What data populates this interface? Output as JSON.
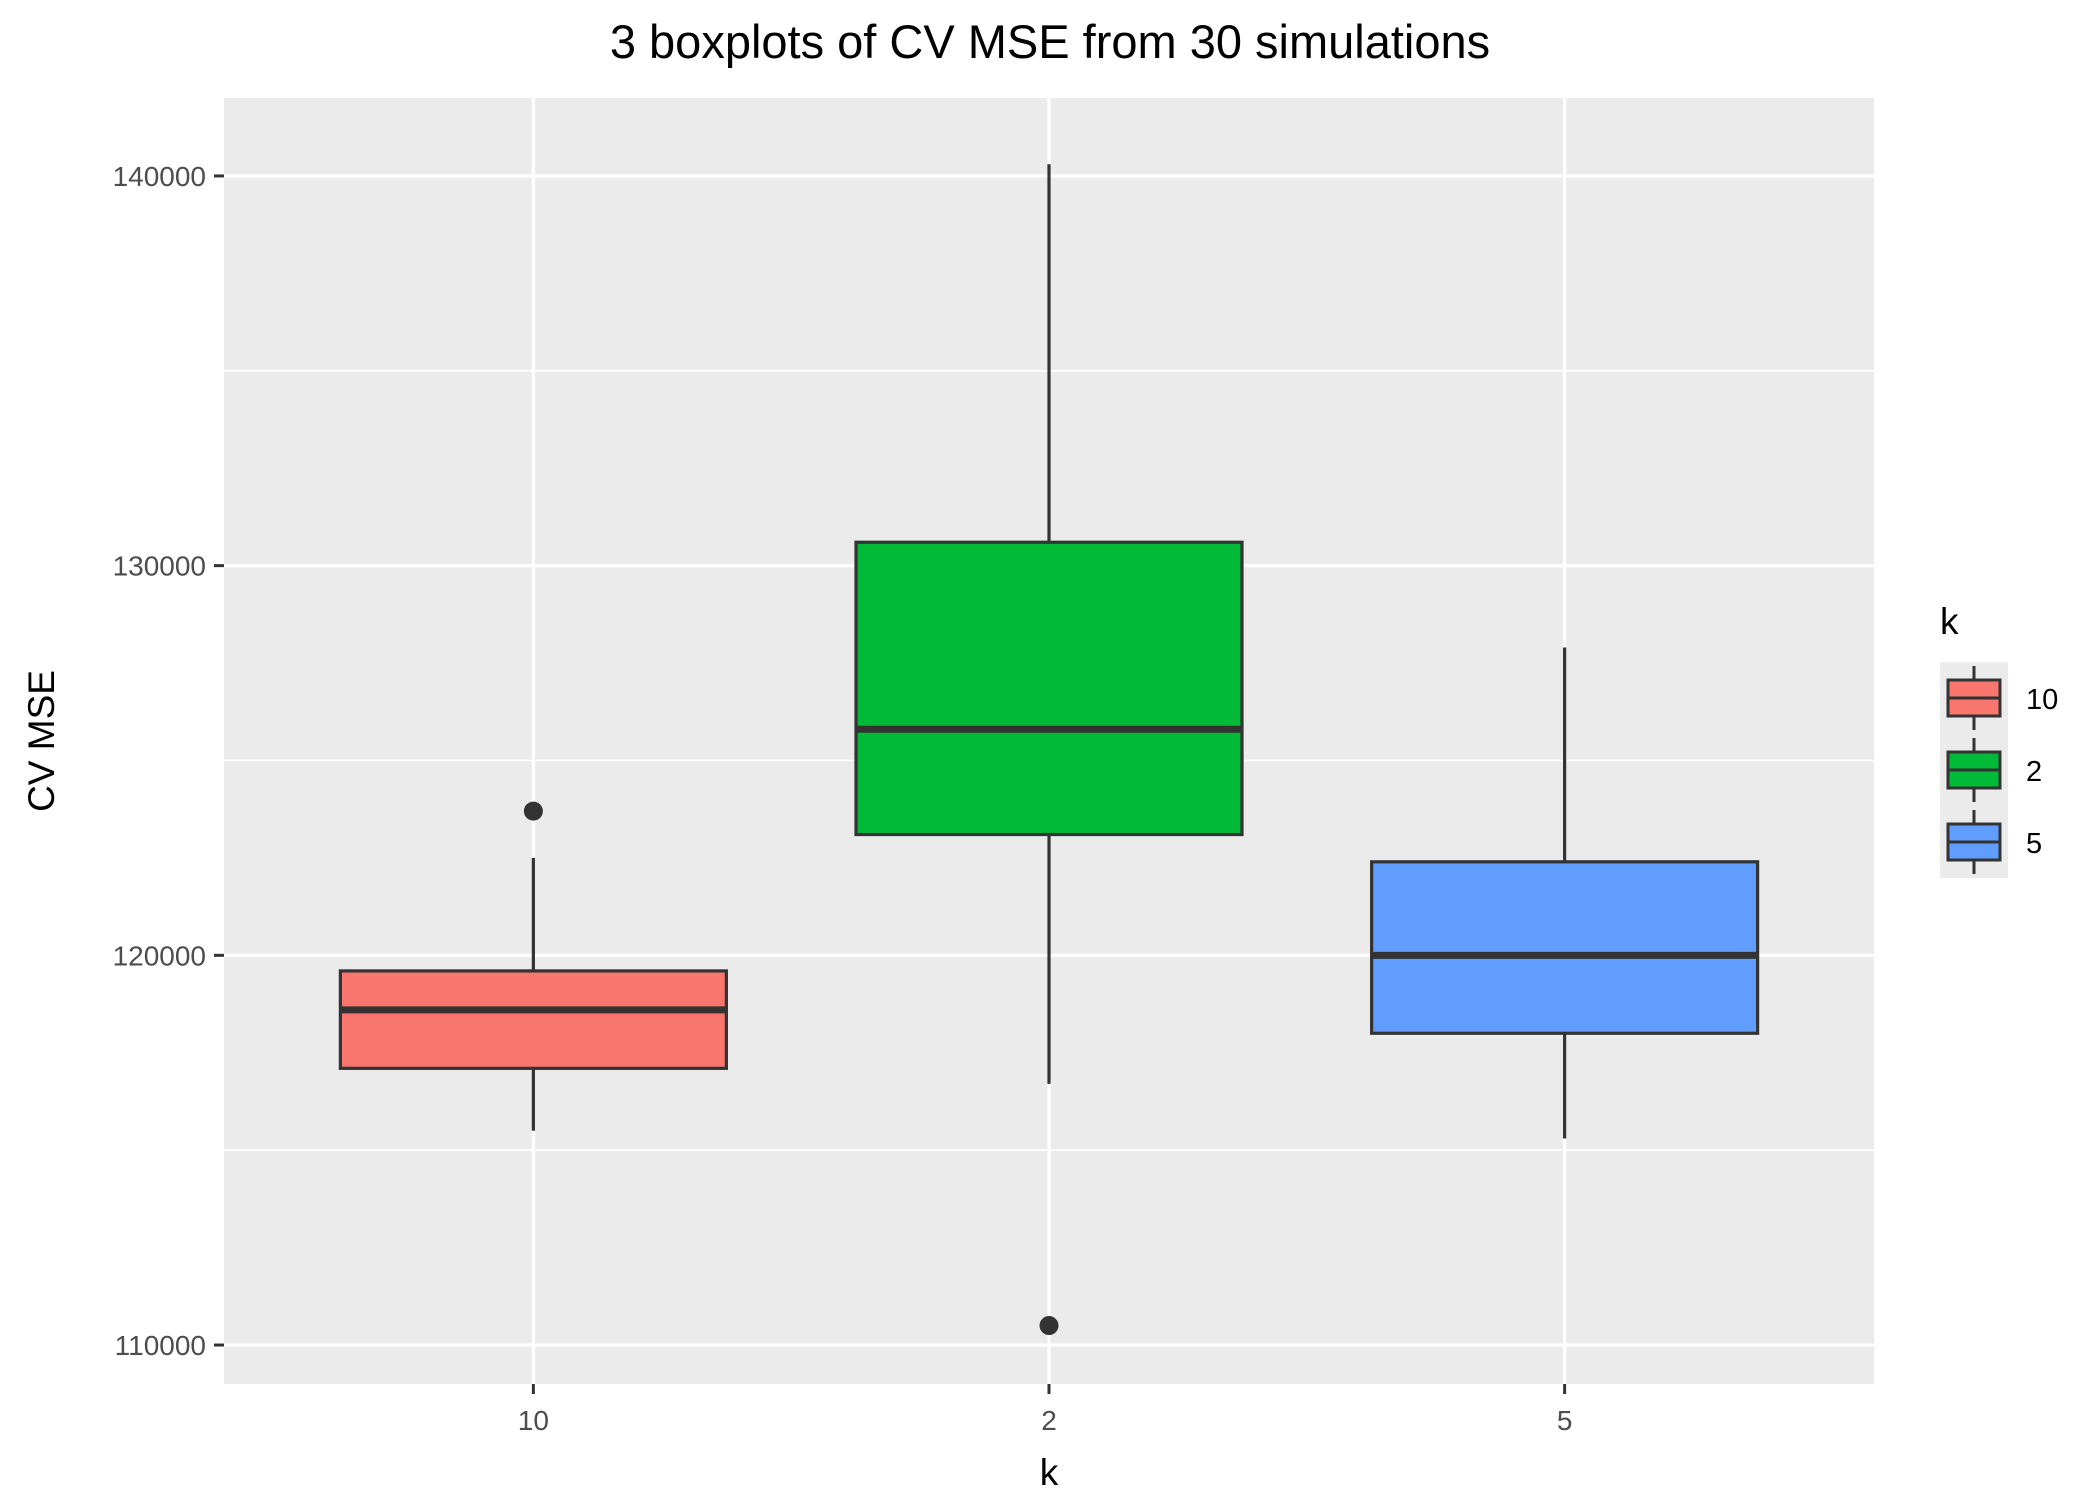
{
  "chart_data": {
    "type": "boxplot",
    "title": "3 boxplots of CV MSE from 30 simulations",
    "xlabel": "k",
    "ylabel": "CV MSE",
    "categories": [
      "10",
      "2",
      "5"
    ],
    "y_ticks": [
      110000,
      120000,
      130000,
      140000
    ],
    "ylim": [
      109000,
      142000
    ],
    "grid": true,
    "legend": {
      "title": "k",
      "position": "right",
      "entries": [
        "10",
        "2",
        "5"
      ]
    },
    "colors": {
      "10": "#F8766D",
      "2": "#00BA38",
      "5": "#619CFF",
      "panel_background": "#EBEBEB",
      "grid": "#FFFFFF",
      "outline": "#333333"
    },
    "series": [
      {
        "name": "10",
        "whisker_low": 115500,
        "q1": 117100,
        "median": 118600,
        "q3": 119600,
        "whisker_high": 122500,
        "outliers": [
          123700
        ]
      },
      {
        "name": "2",
        "whisker_low": 116700,
        "q1": 123100,
        "median": 125800,
        "q3": 130600,
        "whisker_high": 140300,
        "outliers": [
          110500
        ]
      },
      {
        "name": "5",
        "whisker_low": 115300,
        "q1": 118000,
        "median": 120000,
        "q3": 122400,
        "whisker_high": 127900,
        "outliers": []
      }
    ]
  }
}
